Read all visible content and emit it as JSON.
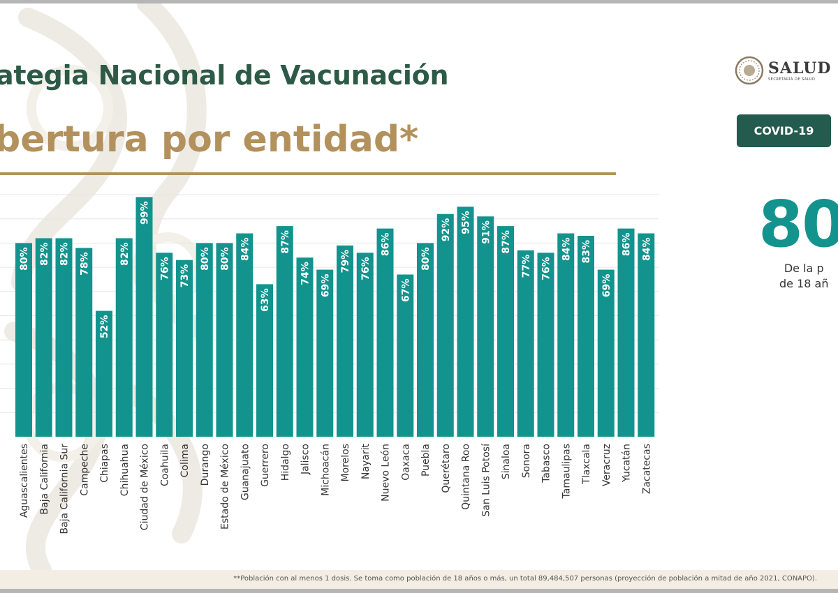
{
  "header": {
    "title": "ategia Nacional de Vacunación",
    "subtitle": "bertura por entidad*"
  },
  "logo": {
    "name": "SALUD",
    "sub": "SECRETARÍA DE SALUD"
  },
  "badge": {
    "label": "COVID-19"
  },
  "summary": {
    "value": "80",
    "line1": "De la p",
    "line2": "de 18 añ"
  },
  "footnote": "**Población con al menos 1 dosis. Se toma como población de 18 años o más, un total 89,484,507 personas (proyección de población a mitad de año 2021, CONAPO).",
  "colors": {
    "bar": "#13938e",
    "title": "#2c5a47",
    "subtitle": "#b3915c",
    "badge": "#235b4e"
  },
  "chart_data": {
    "type": "bar",
    "categories": [
      "Aguascalientes",
      "Baja California",
      "Baja California Sur",
      "Campeche",
      "Chiapas",
      "Chihuahua",
      "Ciudad de México",
      "Coahuila",
      "Colima",
      "Durango",
      "Estado de México",
      "Guanajuato",
      "Guerrero",
      "Hidalgo",
      "Jalisco",
      "Michoacán",
      "Morelos",
      "Nayarit",
      "Nuevo León",
      "Oaxaca",
      "Puebla",
      "Querétaro",
      "Quintana Roo",
      "San Luis Potosí",
      "Sinaloa",
      "Sonora",
      "Tabasco",
      "Tamaulipas",
      "Tlaxcala",
      "Veracruz",
      "Yucatán",
      "Zacatecas"
    ],
    "values": [
      80,
      82,
      82,
      78,
      52,
      82,
      99,
      76,
      73,
      80,
      80,
      84,
      63,
      87,
      74,
      69,
      79,
      76,
      86,
      67,
      80,
      92,
      95,
      91,
      87,
      77,
      76,
      84,
      83,
      69,
      86,
      84
    ],
    "labels": [
      "80%",
      "82%",
      "82%",
      "78%",
      "52%",
      "82%",
      "99%",
      "76%",
      "73%",
      "80%",
      "80%",
      "84%",
      "63%",
      "87%",
      "74%",
      "69%",
      "79%",
      "76%",
      "86%",
      "67%",
      "80%",
      "92%",
      "95%",
      "91%",
      "87%",
      "77%",
      "76%",
      "84%",
      "83%",
      "69%",
      "86%",
      "84%"
    ],
    "ylim": [
      0,
      100
    ],
    "grid": true,
    "legend": "none"
  }
}
